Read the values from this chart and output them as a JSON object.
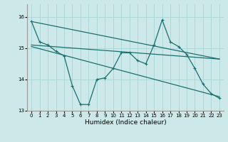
{
  "xlabel": "Humidex (Indice chaleur)",
  "bg_color": "#cce8e8",
  "grid_color": "#aad4d4",
  "line_color": "#1a7070",
  "xlim": [
    -0.5,
    23.5
  ],
  "ylim": [
    13.0,
    16.4
  ],
  "yticks": [
    13,
    14,
    15,
    16
  ],
  "xticks": [
    0,
    1,
    2,
    3,
    4,
    5,
    6,
    7,
    8,
    9,
    10,
    11,
    12,
    13,
    14,
    15,
    16,
    17,
    18,
    19,
    20,
    21,
    22,
    23
  ],
  "main_x": [
    0,
    1,
    2,
    3,
    4,
    5,
    6,
    7,
    8,
    9,
    10,
    11,
    12,
    13,
    14,
    15,
    16,
    17,
    18,
    19,
    20,
    21,
    22,
    23
  ],
  "main_y": [
    15.85,
    15.2,
    15.1,
    14.9,
    14.75,
    13.8,
    13.2,
    13.2,
    14.0,
    14.05,
    14.35,
    14.85,
    14.85,
    14.6,
    14.5,
    15.1,
    15.9,
    15.2,
    15.05,
    14.8,
    14.35,
    13.85,
    13.55,
    13.4
  ],
  "trend1_x": [
    0,
    23
  ],
  "trend1_y": [
    15.85,
    14.65
  ],
  "trend2_x": [
    0,
    23
  ],
  "trend2_y": [
    15.1,
    14.65
  ],
  "trend3_x": [
    0,
    23
  ],
  "trend3_y": [
    15.05,
    13.45
  ]
}
